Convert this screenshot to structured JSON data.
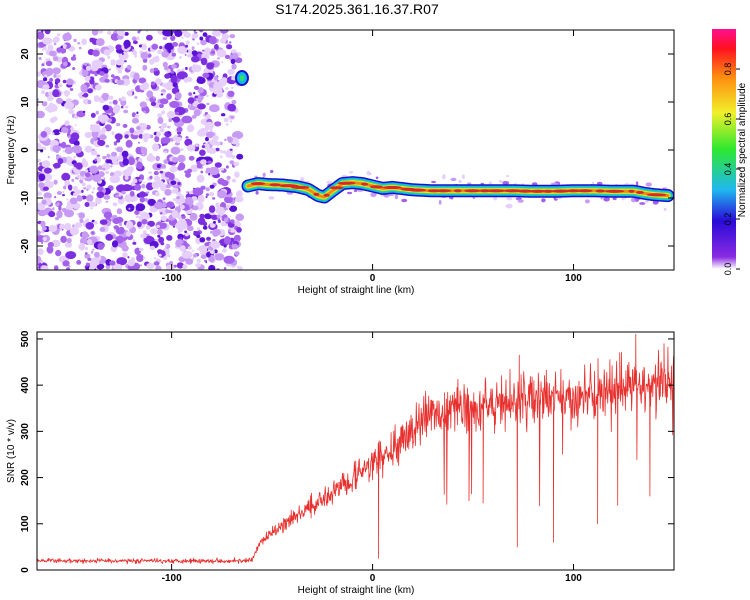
{
  "title": "S174.2025.361.16.37.R07",
  "colors": {
    "snr_line": "#e8312e",
    "speckle": [
      "#e6d0fb",
      "#c79af4",
      "#a462ec",
      "#7c2fe0",
      "#5a12d6"
    ],
    "track_outer": "#1a10c8",
    "track_band": [
      "#11b8ee",
      "#33e066",
      "#f0e42a",
      "#ee8a18",
      "#d62a2a"
    ],
    "spot": [
      "#1a10c8",
      "#11b8ee",
      "#33e066"
    ]
  },
  "chart_data": [
    {
      "type": "heatmap",
      "name": "spectrogram",
      "xlabel": "Height of straight line (km)",
      "ylabel": "Frequency (Hz)",
      "xlim": [
        -167,
        150
      ],
      "ylim": [
        -25,
        25
      ],
      "xticks": [
        -100,
        0,
        100
      ],
      "yticks": [
        20,
        10,
        0,
        -10,
        -20
      ],
      "noise_region_x": [
        -167,
        -66
      ],
      "spot": {
        "x": -65,
        "y": 15
      },
      "track": {
        "x": [
          -62,
          -57,
          -52,
          -45,
          -38,
          -32,
          -27,
          -24,
          -20,
          -15,
          -10,
          -5,
          0,
          5,
          10,
          20,
          30,
          40,
          50,
          60,
          70,
          80,
          90,
          100,
          110,
          120,
          130,
          135,
          140,
          147
        ],
        "y": [
          -7.5,
          -7,
          -7.2,
          -7.3,
          -7.6,
          -8.2,
          -9.5,
          -9.8,
          -8.5,
          -7,
          -6.8,
          -7,
          -7.5,
          -8,
          -7.8,
          -8.3,
          -8.5,
          -8.5,
          -8.5,
          -8.5,
          -8.5,
          -8.6,
          -8.6,
          -8.5,
          -8.5,
          -8.6,
          -8.6,
          -9,
          -9.3,
          -9.5
        ]
      },
      "colorbar": {
        "label": "Normalized spectral amplitude",
        "range": [
          0,
          1
        ],
        "ticks": [
          "0.0",
          "0.2",
          "0.4",
          "0.6",
          "0.8"
        ]
      }
    },
    {
      "type": "line",
      "name": "snr",
      "xlabel": "Height of straight line (km)",
      "ylabel": "SNR (10 * v/v)",
      "xlim": [
        -167,
        150
      ],
      "ylim": [
        0,
        515
      ],
      "xticks": [
        -100,
        0,
        100
      ],
      "yticks": [
        0,
        100,
        200,
        300,
        400,
        500
      ],
      "trend": {
        "x": [
          -167,
          -60,
          -56,
          -50,
          -40,
          -30,
          -20,
          -10,
          0,
          10,
          20,
          25,
          30,
          40,
          60,
          80,
          100,
          120,
          140,
          150
        ],
        "y": [
          20,
          20,
          60,
          80,
          110,
          140,
          170,
          200,
          230,
          260,
          300,
          330,
          340,
          350,
          360,
          370,
          370,
          390,
          400,
          410
        ]
      },
      "dips": [
        {
          "x": 3,
          "y": 25
        },
        {
          "x": 72,
          "y": 50
        },
        {
          "x": 90,
          "y": 60
        },
        {
          "x": 112,
          "y": 100
        },
        {
          "x": 55,
          "y": 145
        },
        {
          "x": 48,
          "y": 150
        },
        {
          "x": 122,
          "y": 140
        },
        {
          "x": 138,
          "y": 160
        }
      ],
      "peaks": [
        {
          "x": 131,
          "y": 510
        },
        {
          "x": 145,
          "y": 490
        },
        {
          "x": 123,
          "y": 470
        },
        {
          "x": 73,
          "y": 465
        }
      ]
    }
  ]
}
